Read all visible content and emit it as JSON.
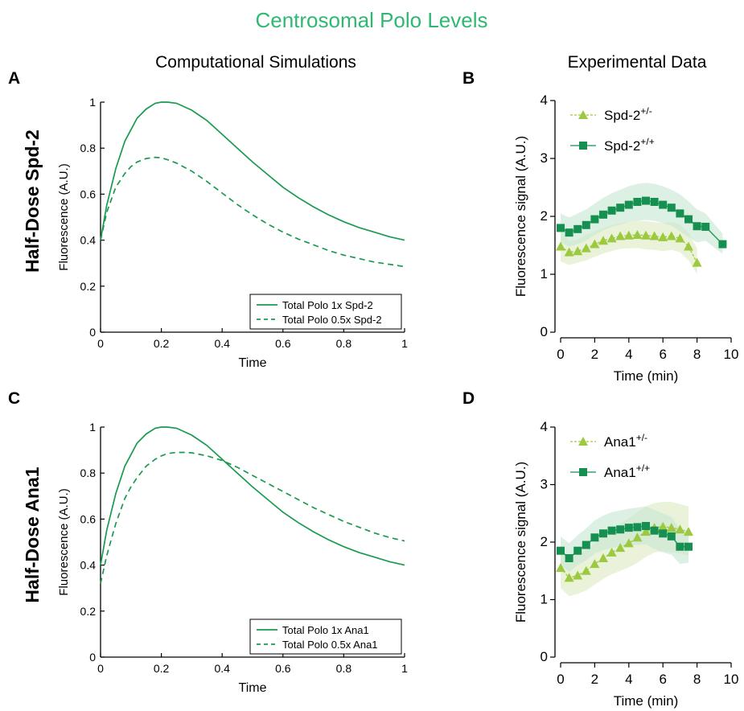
{
  "figure": {
    "title": "Centrosomal Polo Levels",
    "title_color": "#2fb873",
    "col_left": "Computational Simulations",
    "col_right": "Experimental Data",
    "row_top": "Half-Dose Spd-2",
    "row_bottom": "Half-Dose Ana1",
    "panel_letters": [
      "A",
      "B",
      "C",
      "D"
    ]
  },
  "colors": {
    "sim_line": "#1a9a50",
    "light_series": "#9cc93f",
    "dark_series": "#159050",
    "light_band": "#dcebbf",
    "dark_band": "#c7e6d2"
  },
  "chart_data": [
    {
      "panel": "A",
      "type": "line",
      "xlabel": "Time",
      "ylabel": "Fluorescence (A.U.)",
      "xlim": [
        0,
        1
      ],
      "ylim": [
        0,
        1
      ],
      "xticks": [
        "0",
        "0.2",
        "0.4",
        "0.6",
        "0.8",
        "1"
      ],
      "yticks": [
        "0",
        "0.2",
        "0.4",
        "0.6",
        "0.8",
        "1"
      ],
      "legend_position": "bottom-right",
      "series": [
        {
          "name": "Total Polo 1x Spd-2",
          "style": "solid",
          "x": [
            0,
            0.02,
            0.05,
            0.08,
            0.1,
            0.12,
            0.15,
            0.18,
            0.2,
            0.22,
            0.25,
            0.3,
            0.35,
            0.4,
            0.45,
            0.5,
            0.55,
            0.6,
            0.65,
            0.7,
            0.75,
            0.8,
            0.85,
            0.9,
            0.95,
            1.0
          ],
          "y": [
            0.4,
            0.55,
            0.71,
            0.83,
            0.88,
            0.93,
            0.97,
            0.995,
            1.0,
            1.0,
            0.995,
            0.965,
            0.92,
            0.86,
            0.8,
            0.74,
            0.685,
            0.63,
            0.585,
            0.545,
            0.51,
            0.48,
            0.455,
            0.435,
            0.415,
            0.4
          ]
        },
        {
          "name": "Total Polo 0.5x Spd-2",
          "style": "dashed",
          "x": [
            0,
            0.02,
            0.05,
            0.08,
            0.1,
            0.12,
            0.15,
            0.18,
            0.2,
            0.22,
            0.25,
            0.3,
            0.35,
            0.4,
            0.45,
            0.5,
            0.55,
            0.6,
            0.65,
            0.7,
            0.75,
            0.8,
            0.85,
            0.9,
            0.95,
            1.0
          ],
          "y": [
            0.4,
            0.52,
            0.63,
            0.69,
            0.72,
            0.74,
            0.755,
            0.76,
            0.758,
            0.75,
            0.735,
            0.7,
            0.655,
            0.605,
            0.555,
            0.51,
            0.47,
            0.435,
            0.405,
            0.38,
            0.355,
            0.335,
            0.32,
            0.305,
            0.295,
            0.285
          ]
        }
      ]
    },
    {
      "panel": "B",
      "type": "line",
      "xlabel": "Time (min)",
      "ylabel": "Fluorescence signal (A.U.)",
      "xlim": [
        0,
        10
      ],
      "ylim": [
        0,
        4
      ],
      "xticks": [
        "0",
        "2",
        "4",
        "6",
        "8",
        "10"
      ],
      "yticks": [
        "0",
        "1",
        "2",
        "3",
        "4"
      ],
      "legend_position": "top-left",
      "series": [
        {
          "name": "Spd-2",
          "sup": "+/-",
          "marker": "triangle",
          "color_key": "light_series",
          "x": [
            0,
            0.5,
            1,
            1.5,
            2,
            2.5,
            3,
            3.5,
            4,
            4.5,
            5,
            5.5,
            6,
            6.5,
            7,
            7.5,
            8
          ],
          "y": [
            1.48,
            1.38,
            1.4,
            1.45,
            1.52,
            1.58,
            1.62,
            1.66,
            1.67,
            1.68,
            1.67,
            1.66,
            1.64,
            1.66,
            1.62,
            1.48,
            1.2
          ],
          "band_upper": [
            1.75,
            1.58,
            1.6,
            1.68,
            1.74,
            1.8,
            1.85,
            1.88,
            1.9,
            1.92,
            1.92,
            1.9,
            1.88,
            1.9,
            1.86,
            1.72,
            1.45
          ],
          "band_lower": [
            1.22,
            1.16,
            1.2,
            1.24,
            1.3,
            1.36,
            1.4,
            1.44,
            1.45,
            1.45,
            1.43,
            1.42,
            1.4,
            1.42,
            1.38,
            1.24,
            1.0
          ]
        },
        {
          "name": "Spd-2",
          "sup": "+/+",
          "marker": "square",
          "color_key": "dark_series",
          "x": [
            0,
            0.5,
            1,
            1.5,
            2,
            2.5,
            3,
            3.5,
            4,
            4.5,
            5,
            5.5,
            6,
            6.5,
            7,
            7.5,
            8,
            8.5,
            9.5
          ],
          "y": [
            1.8,
            1.72,
            1.78,
            1.85,
            1.95,
            2.03,
            2.1,
            2.15,
            2.2,
            2.25,
            2.27,
            2.25,
            2.2,
            2.15,
            2.05,
            1.95,
            1.83,
            1.82,
            1.52
          ],
          "band_upper": [
            2.05,
            1.98,
            2.05,
            2.12,
            2.22,
            2.32,
            2.4,
            2.46,
            2.52,
            2.56,
            2.58,
            2.56,
            2.52,
            2.46,
            2.38,
            2.26,
            2.12,
            2.05,
            1.7
          ],
          "band_lower": [
            1.55,
            1.48,
            1.52,
            1.58,
            1.68,
            1.76,
            1.82,
            1.86,
            1.9,
            1.92,
            1.94,
            1.92,
            1.88,
            1.84,
            1.74,
            1.64,
            1.55,
            1.58,
            1.35
          ]
        }
      ]
    },
    {
      "panel": "C",
      "type": "line",
      "xlabel": "Time",
      "ylabel": "Fluorescence (A.U.)",
      "xlim": [
        0,
        1
      ],
      "ylim": [
        0,
        1
      ],
      "xticks": [
        "0",
        "0.2",
        "0.4",
        "0.6",
        "0.8",
        "1"
      ],
      "yticks": [
        "0",
        "0.2",
        "0.4",
        "0.6",
        "0.8",
        "1"
      ],
      "legend_position": "bottom-right",
      "series": [
        {
          "name": "Total Polo 1x Ana1",
          "style": "solid",
          "x": [
            0,
            0.02,
            0.05,
            0.08,
            0.1,
            0.12,
            0.15,
            0.18,
            0.2,
            0.22,
            0.25,
            0.3,
            0.35,
            0.4,
            0.45,
            0.5,
            0.55,
            0.6,
            0.65,
            0.7,
            0.75,
            0.8,
            0.85,
            0.9,
            0.95,
            1.0
          ],
          "y": [
            0.4,
            0.55,
            0.71,
            0.83,
            0.88,
            0.93,
            0.97,
            0.995,
            1.0,
            1.0,
            0.995,
            0.965,
            0.92,
            0.86,
            0.8,
            0.74,
            0.685,
            0.63,
            0.585,
            0.545,
            0.51,
            0.48,
            0.455,
            0.435,
            0.415,
            0.4
          ]
        },
        {
          "name": "Total Polo 0.5x Ana1",
          "style": "dashed",
          "x": [
            0,
            0.02,
            0.05,
            0.08,
            0.1,
            0.12,
            0.15,
            0.18,
            0.2,
            0.22,
            0.25,
            0.28,
            0.3,
            0.35,
            0.4,
            0.45,
            0.5,
            0.55,
            0.6,
            0.65,
            0.7,
            0.75,
            0.8,
            0.85,
            0.9,
            0.95,
            1.0
          ],
          "y": [
            0.32,
            0.44,
            0.58,
            0.69,
            0.74,
            0.78,
            0.83,
            0.86,
            0.875,
            0.885,
            0.89,
            0.89,
            0.888,
            0.875,
            0.855,
            0.825,
            0.79,
            0.755,
            0.72,
            0.685,
            0.65,
            0.62,
            0.59,
            0.565,
            0.54,
            0.52,
            0.505
          ]
        }
      ]
    },
    {
      "panel": "D",
      "type": "line",
      "xlabel": "Time (min)",
      "ylabel": "Fluorescence signal (A.U.)",
      "xlim": [
        0,
        10
      ],
      "ylim": [
        0,
        4
      ],
      "xticks": [
        "0",
        "2",
        "4",
        "6",
        "8",
        "10"
      ],
      "yticks": [
        "0",
        "1",
        "2",
        "3",
        "4"
      ],
      "legend_position": "top-left",
      "series": [
        {
          "name": "Ana1",
          "sup": "+/-",
          "marker": "triangle",
          "color_key": "light_series",
          "x": [
            0,
            0.5,
            1,
            1.5,
            2,
            2.5,
            3,
            3.5,
            4,
            4.5,
            5,
            5.5,
            6,
            6.5,
            7,
            7.5
          ],
          "y": [
            1.55,
            1.38,
            1.42,
            1.5,
            1.62,
            1.72,
            1.82,
            1.9,
            1.98,
            2.08,
            2.18,
            2.25,
            2.27,
            2.25,
            2.22,
            2.18
          ],
          "band_upper": [
            1.9,
            1.72,
            1.78,
            1.86,
            1.98,
            2.1,
            2.22,
            2.32,
            2.42,
            2.52,
            2.62,
            2.68,
            2.7,
            2.7,
            2.66,
            2.62
          ],
          "band_lower": [
            1.2,
            1.06,
            1.1,
            1.16,
            1.26,
            1.36,
            1.44,
            1.5,
            1.56,
            1.64,
            1.74,
            1.82,
            1.84,
            1.82,
            1.8,
            1.76
          ]
        },
        {
          "name": "Ana1",
          "sup": "+/+",
          "marker": "square",
          "color_key": "dark_series",
          "x": [
            0,
            0.5,
            1,
            1.5,
            2,
            2.5,
            3,
            3.5,
            4,
            4.5,
            5,
            5.5,
            6,
            6.5,
            7,
            7.5
          ],
          "y": [
            1.85,
            1.72,
            1.85,
            1.95,
            2.08,
            2.15,
            2.2,
            2.22,
            2.25,
            2.26,
            2.28,
            2.2,
            2.15,
            2.1,
            1.92,
            1.92
          ],
          "band_upper": [
            2.1,
            1.98,
            2.12,
            2.24,
            2.38,
            2.46,
            2.52,
            2.55,
            2.58,
            2.6,
            2.62,
            2.56,
            2.5,
            2.44,
            2.22,
            2.2
          ],
          "band_lower": [
            1.6,
            1.48,
            1.6,
            1.68,
            1.8,
            1.86,
            1.9,
            1.92,
            1.94,
            1.95,
            1.96,
            1.88,
            1.82,
            1.78,
            1.62,
            1.64
          ]
        }
      ]
    }
  ]
}
